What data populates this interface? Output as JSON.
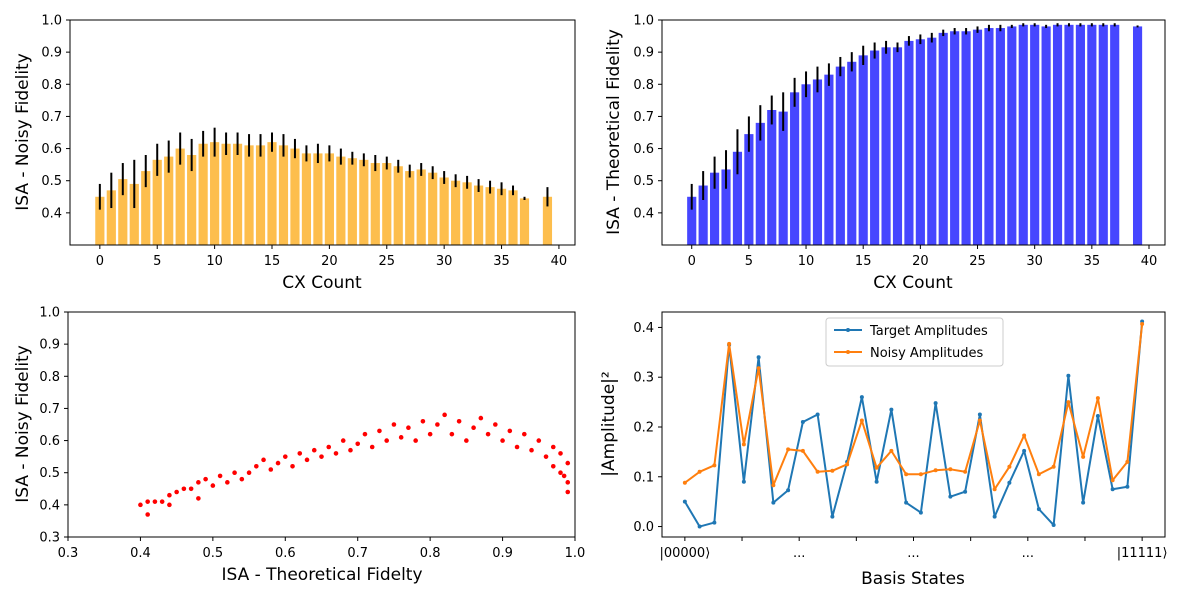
{
  "figure": {
    "background": "#ffffff"
  },
  "chart_data": [
    {
      "type": "bar",
      "xlabel": "CX Count",
      "ylabel": "ISA - Noisy Fidelity",
      "xlim": [
        -2.6,
        41.4
      ],
      "ylim": [
        0.3,
        1.0
      ],
      "xticks": [
        0,
        5,
        10,
        15,
        20,
        25,
        30,
        35,
        40
      ],
      "yticks": [
        0.4,
        0.5,
        0.6,
        0.7,
        0.8,
        0.9,
        1.0
      ],
      "color": "#fdbe4d",
      "error_color": "#000000",
      "series": [
        {
          "x": [
            0,
            1,
            2,
            3,
            4,
            5,
            6,
            7,
            8,
            9,
            10,
            11,
            12,
            13,
            14,
            15,
            16,
            17,
            18,
            19,
            20,
            21,
            22,
            23,
            24,
            25,
            26,
            27,
            28,
            29,
            30,
            31,
            32,
            33,
            34,
            35,
            36,
            37,
            39
          ],
          "values": [
            0.45,
            0.47,
            0.505,
            0.49,
            0.53,
            0.565,
            0.575,
            0.6,
            0.58,
            0.615,
            0.62,
            0.615,
            0.615,
            0.61,
            0.61,
            0.62,
            0.61,
            0.6,
            0.585,
            0.585,
            0.585,
            0.575,
            0.57,
            0.565,
            0.555,
            0.555,
            0.545,
            0.53,
            0.535,
            0.525,
            0.51,
            0.5,
            0.495,
            0.485,
            0.48,
            0.475,
            0.47,
            0.445,
            0.45
          ],
          "errors": [
            0.04,
            0.055,
            0.05,
            0.075,
            0.05,
            0.05,
            0.05,
            0.05,
            0.05,
            0.04,
            0.045,
            0.035,
            0.035,
            0.035,
            0.035,
            0.03,
            0.035,
            0.03,
            0.025,
            0.03,
            0.025,
            0.025,
            0.02,
            0.02,
            0.025,
            0.02,
            0.02,
            0.02,
            0.02,
            0.02,
            0.02,
            0.02,
            0.02,
            0.02,
            0.02,
            0.02,
            0.015,
            0.005,
            0.03
          ]
        }
      ]
    },
    {
      "type": "bar",
      "xlabel": "CX Count",
      "ylabel": "ISA - Theoretical Fidelity",
      "xlim": [
        -2.6,
        41.4
      ],
      "ylim": [
        0.3,
        1.0
      ],
      "xticks": [
        0,
        5,
        10,
        15,
        20,
        25,
        30,
        35,
        40
      ],
      "yticks": [
        0.4,
        0.5,
        0.6,
        0.7,
        0.8,
        0.9,
        1.0
      ],
      "color": "#4646ff",
      "error_color": "#000000",
      "series": [
        {
          "x": [
            0,
            1,
            2,
            3,
            4,
            5,
            6,
            7,
            8,
            9,
            10,
            11,
            12,
            13,
            14,
            15,
            16,
            17,
            18,
            19,
            20,
            21,
            22,
            23,
            24,
            25,
            26,
            27,
            28,
            29,
            30,
            31,
            32,
            33,
            34,
            35,
            36,
            37,
            39
          ],
          "values": [
            0.45,
            0.485,
            0.525,
            0.535,
            0.59,
            0.645,
            0.68,
            0.72,
            0.715,
            0.775,
            0.8,
            0.815,
            0.83,
            0.855,
            0.87,
            0.89,
            0.905,
            0.915,
            0.915,
            0.935,
            0.94,
            0.945,
            0.96,
            0.965,
            0.965,
            0.97,
            0.975,
            0.975,
            0.98,
            0.985,
            0.985,
            0.98,
            0.985,
            0.985,
            0.985,
            0.985,
            0.985,
            0.985,
            0.98
          ],
          "errors": [
            0.04,
            0.045,
            0.05,
            0.06,
            0.07,
            0.055,
            0.055,
            0.045,
            0.06,
            0.045,
            0.04,
            0.04,
            0.035,
            0.03,
            0.03,
            0.03,
            0.025,
            0.02,
            0.015,
            0.015,
            0.015,
            0.015,
            0.01,
            0.01,
            0.01,
            0.01,
            0.01,
            0.01,
            0.005,
            0.005,
            0.005,
            0.005,
            0.005,
            0.005,
            0.005,
            0.005,
            0.005,
            0.005,
            0.003
          ]
        }
      ]
    },
    {
      "type": "scatter",
      "xlabel": "ISA - Theoretical Fidelty",
      "ylabel": "ISA - Noisy Fidelity",
      "xlim": [
        0.3,
        1.0
      ],
      "ylim": [
        0.3,
        1.0
      ],
      "xticks": [
        0.3,
        0.4,
        0.5,
        0.6,
        0.7,
        0.8,
        0.9,
        1.0
      ],
      "yticks": [
        0.3,
        0.4,
        0.5,
        0.6,
        0.7,
        0.8,
        0.9,
        1.0
      ],
      "color": "#ff0000",
      "points": [
        [
          0.4,
          0.4
        ],
        [
          0.41,
          0.37
        ],
        [
          0.41,
          0.41
        ],
        [
          0.42,
          0.41
        ],
        [
          0.43,
          0.41
        ],
        [
          0.44,
          0.4
        ],
        [
          0.44,
          0.43
        ],
        [
          0.45,
          0.44
        ],
        [
          0.46,
          0.45
        ],
        [
          0.47,
          0.45
        ],
        [
          0.48,
          0.42
        ],
        [
          0.48,
          0.47
        ],
        [
          0.49,
          0.48
        ],
        [
          0.5,
          0.46
        ],
        [
          0.51,
          0.49
        ],
        [
          0.52,
          0.47
        ],
        [
          0.53,
          0.5
        ],
        [
          0.54,
          0.48
        ],
        [
          0.55,
          0.5
        ],
        [
          0.56,
          0.52
        ],
        [
          0.57,
          0.54
        ],
        [
          0.58,
          0.51
        ],
        [
          0.59,
          0.53
        ],
        [
          0.6,
          0.55
        ],
        [
          0.61,
          0.52
        ],
        [
          0.62,
          0.56
        ],
        [
          0.63,
          0.54
        ],
        [
          0.64,
          0.57
        ],
        [
          0.65,
          0.55
        ],
        [
          0.66,
          0.58
        ],
        [
          0.67,
          0.56
        ],
        [
          0.68,
          0.6
        ],
        [
          0.69,
          0.57
        ],
        [
          0.7,
          0.59
        ],
        [
          0.71,
          0.62
        ],
        [
          0.72,
          0.58
        ],
        [
          0.73,
          0.63
        ],
        [
          0.74,
          0.6
        ],
        [
          0.75,
          0.65
        ],
        [
          0.76,
          0.61
        ],
        [
          0.77,
          0.64
        ],
        [
          0.78,
          0.6
        ],
        [
          0.79,
          0.66
        ],
        [
          0.8,
          0.62
        ],
        [
          0.81,
          0.65
        ],
        [
          0.82,
          0.68
        ],
        [
          0.83,
          0.62
        ],
        [
          0.84,
          0.66
        ],
        [
          0.85,
          0.6
        ],
        [
          0.86,
          0.64
        ],
        [
          0.87,
          0.67
        ],
        [
          0.88,
          0.62
        ],
        [
          0.89,
          0.65
        ],
        [
          0.9,
          0.6
        ],
        [
          0.91,
          0.63
        ],
        [
          0.92,
          0.58
        ],
        [
          0.93,
          0.62
        ],
        [
          0.94,
          0.57
        ],
        [
          0.95,
          0.6
        ],
        [
          0.96,
          0.55
        ],
        [
          0.97,
          0.58
        ],
        [
          0.97,
          0.52
        ],
        [
          0.98,
          0.56
        ],
        [
          0.98,
          0.5
        ],
        [
          0.99,
          0.53
        ],
        [
          0.99,
          0.47
        ],
        [
          0.99,
          0.44
        ],
        [
          0.985,
          0.49
        ]
      ]
    },
    {
      "type": "line",
      "xlabel": "Basis States",
      "ylabel": "|Amplitude|²",
      "ylim": [
        -0.021,
        0.431
      ],
      "yticks": [
        0.0,
        0.1,
        0.2,
        0.3,
        0.4
      ],
      "xtick_labels": [
        "|00000⟩",
        "...",
        "...",
        "...",
        "|11111⟩"
      ],
      "legend_position": "upper-center",
      "series": [
        {
          "name": "Target Amplitudes",
          "color": "#1f77b4",
          "values": [
            0.05,
            0.0,
            0.008,
            0.365,
            0.09,
            0.34,
            0.048,
            0.073,
            0.21,
            0.225,
            0.02,
            0.13,
            0.26,
            0.09,
            0.235,
            0.048,
            0.028,
            0.248,
            0.06,
            0.07,
            0.225,
            0.02,
            0.088,
            0.152,
            0.035,
            0.003,
            0.303,
            0.048,
            0.222,
            0.075,
            0.08,
            0.412
          ]
        },
        {
          "name": "Noisy Amplitudes",
          "color": "#ff7f0e",
          "values": [
            0.088,
            0.11,
            0.123,
            0.367,
            0.165,
            0.318,
            0.083,
            0.155,
            0.152,
            0.11,
            0.112,
            0.125,
            0.213,
            0.118,
            0.152,
            0.105,
            0.105,
            0.113,
            0.115,
            0.11,
            0.213,
            0.075,
            0.12,
            0.183,
            0.105,
            0.12,
            0.25,
            0.14,
            0.258,
            0.093,
            0.13,
            0.407
          ]
        }
      ]
    }
  ]
}
